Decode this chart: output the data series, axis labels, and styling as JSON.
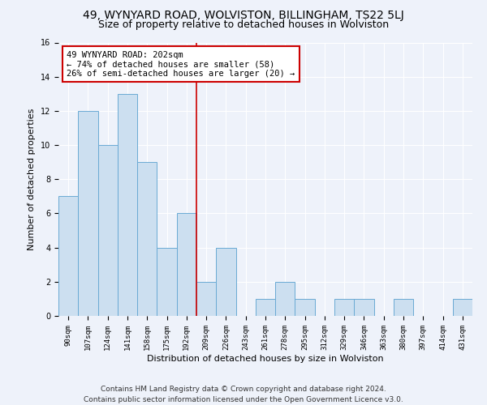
{
  "title": "49, WYNYARD ROAD, WOLVISTON, BILLINGHAM, TS22 5LJ",
  "subtitle": "Size of property relative to detached houses in Wolviston",
  "xlabel": "Distribution of detached houses by size in Wolviston",
  "ylabel": "Number of detached properties",
  "categories": [
    "90sqm",
    "107sqm",
    "124sqm",
    "141sqm",
    "158sqm",
    "175sqm",
    "192sqm",
    "209sqm",
    "226sqm",
    "243sqm",
    "261sqm",
    "278sqm",
    "295sqm",
    "312sqm",
    "329sqm",
    "346sqm",
    "363sqm",
    "380sqm",
    "397sqm",
    "414sqm",
    "431sqm"
  ],
  "values": [
    7,
    12,
    10,
    13,
    9,
    4,
    6,
    2,
    4,
    0,
    1,
    2,
    1,
    0,
    1,
    1,
    0,
    1,
    0,
    0,
    1
  ],
  "bar_color": "#ccdff0",
  "bar_edge_color": "#6aaad4",
  "ref_line_x": 6.5,
  "ref_line_color": "#cc0000",
  "annotation_text": "49 WYNYARD ROAD: 202sqm\n← 74% of detached houses are smaller (58)\n26% of semi-detached houses are larger (20) →",
  "annotation_box_color": "#ffffff",
  "annotation_box_edge_color": "#cc0000",
  "ylim": [
    0,
    16
  ],
  "yticks": [
    0,
    2,
    4,
    6,
    8,
    10,
    12,
    14,
    16
  ],
  "footer_line1": "Contains HM Land Registry data © Crown copyright and database right 2024.",
  "footer_line2": "Contains public sector information licensed under the Open Government Licence v3.0.",
  "background_color": "#eef2fa",
  "grid_color": "#ffffff",
  "title_fontsize": 10,
  "subtitle_fontsize": 9,
  "label_fontsize": 8,
  "tick_fontsize": 6.5,
  "footer_fontsize": 6.5,
  "annotation_fontsize": 7.5
}
